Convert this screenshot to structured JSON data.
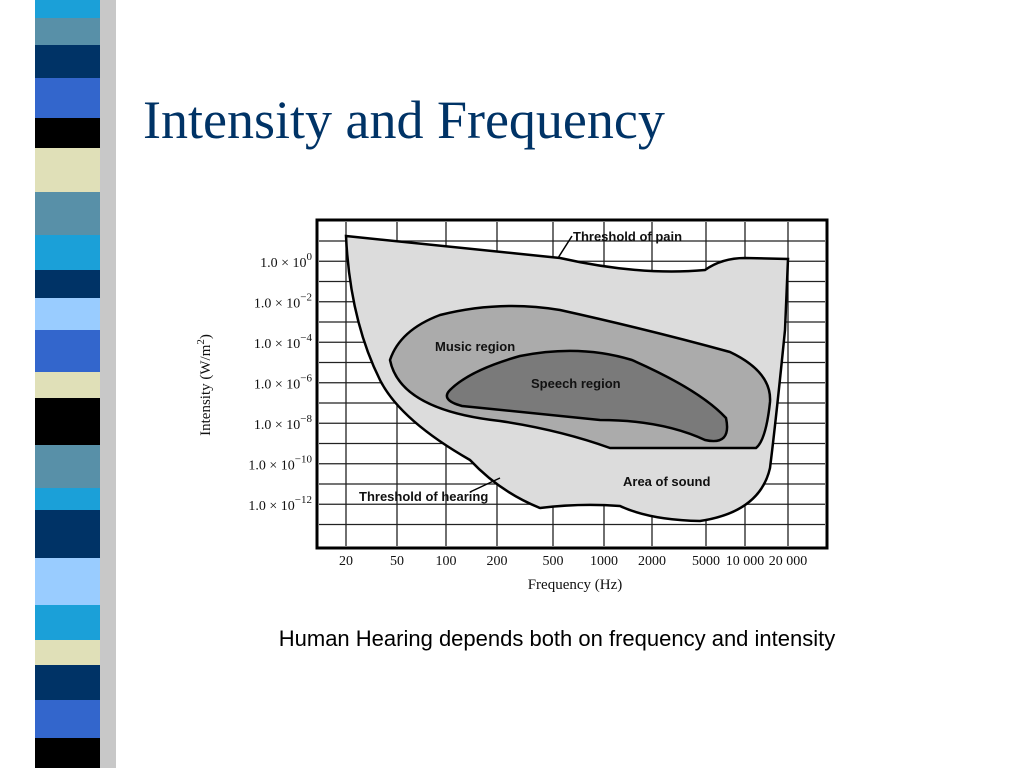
{
  "slide": {
    "title": "Intensity and Frequency",
    "caption": "Human Hearing depends both on frequency and intensity",
    "figure": {
      "y_axis_label": {
        "text": "Intensity (W/m",
        "sup": "2",
        "close": ")"
      },
      "x_axis_label": "Frequency (Hz)",
      "y_ticks": [
        {
          "base": "1.0 × 10",
          "exp": "0"
        },
        {
          "base": "1.0 × 10",
          "exp": "−2"
        },
        {
          "base": "1.0 × 10",
          "exp": "−4"
        },
        {
          "base": "1.0 × 10",
          "exp": "−6"
        },
        {
          "base": "1.0 × 10",
          "exp": "−8"
        },
        {
          "base": "1.0 × 10",
          "exp": "−10"
        },
        {
          "base": "1.0 × 10",
          "exp": "−12"
        }
      ],
      "x_ticks": [
        "20",
        "50",
        "100",
        "200",
        "500",
        "1000",
        "2000",
        "5000",
        "10 000",
        "20 000"
      ],
      "regions": {
        "pain": "Threshold of pain",
        "music": "Music region",
        "speech": "Speech region",
        "sound": "Area of sound",
        "hearing": "Threshold of hearing"
      }
    }
  }
}
